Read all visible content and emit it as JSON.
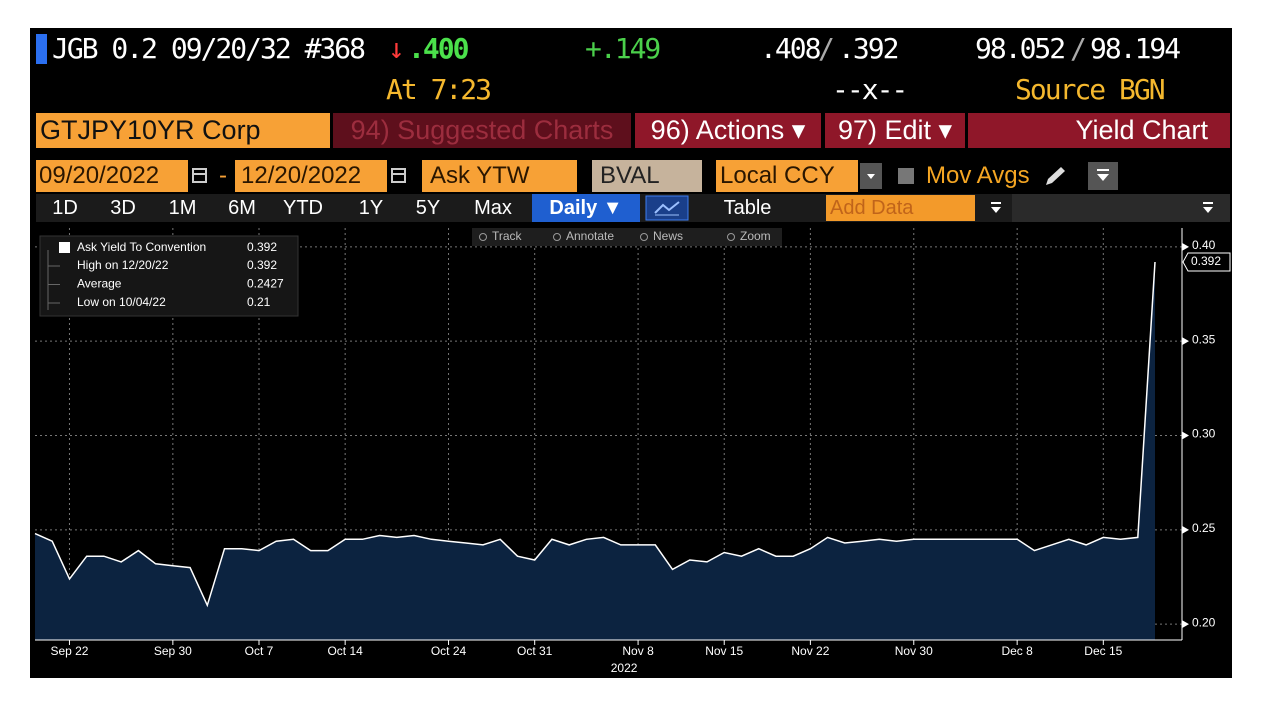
{
  "header": {
    "security": "JGB 0.2 09/20/32 #368",
    "arrow": "↓",
    "last": ".400",
    "change": "+.149",
    "bid": ".408",
    "ask": ".392",
    "separator": "/",
    "price_bid": "98.052",
    "price_ask": "98.194",
    "time": "At 7:23",
    "x_mark": "--x--",
    "source": "Source BGN"
  },
  "menu": {
    "ticker": "GTJPY10YR Corp",
    "suggested": "94) Suggested Charts",
    "actions": "96) Actions ▾",
    "edit": "97) Edit ▾",
    "title": "Yield Chart"
  },
  "controls": {
    "start": "09/20/2022",
    "dash": "-",
    "end": "12/20/2022",
    "field": "Ask YTW",
    "pricing_source": "BVAL",
    "currency": "Local CCY",
    "mov_avgs": "Mov Avgs"
  },
  "periods": [
    "1D",
    "3D",
    "1M",
    "6M",
    "YTD",
    "1Y",
    "5Y",
    "Max"
  ],
  "frequency": "Daily ▼",
  "table": "Table",
  "add_data": "Add Data",
  "chart_tools": [
    "Track",
    "Annotate",
    "News",
    "Zoom"
  ],
  "chart_data": {
    "type": "area",
    "x": [
      "2022-09-20",
      "2022-09-21",
      "2022-09-22",
      "2022-09-23",
      "2022-09-26",
      "2022-09-27",
      "2022-09-28",
      "2022-09-29",
      "2022-09-30",
      "2022-10-03",
      "2022-10-04",
      "2022-10-05",
      "2022-10-06",
      "2022-10-07",
      "2022-10-10",
      "2022-10-11",
      "2022-10-12",
      "2022-10-13",
      "2022-10-14",
      "2022-10-17",
      "2022-10-18",
      "2022-10-19",
      "2022-10-20",
      "2022-10-21",
      "2022-10-24",
      "2022-10-25",
      "2022-10-26",
      "2022-10-27",
      "2022-10-28",
      "2022-10-31",
      "2022-11-01",
      "2022-11-02",
      "2022-11-03",
      "2022-11-04",
      "2022-11-07",
      "2022-11-08",
      "2022-11-09",
      "2022-11-10",
      "2022-11-11",
      "2022-11-14",
      "2022-11-15",
      "2022-11-16",
      "2022-11-17",
      "2022-11-18",
      "2022-11-21",
      "2022-11-22",
      "2022-11-23",
      "2022-11-24",
      "2022-11-25",
      "2022-11-28",
      "2022-11-29",
      "2022-11-30",
      "2022-12-01",
      "2022-12-02",
      "2022-12-05",
      "2022-12-06",
      "2022-12-07",
      "2022-12-08",
      "2022-12-09",
      "2022-12-12",
      "2022-12-13",
      "2022-12-14",
      "2022-12-15",
      "2022-12-16",
      "2022-12-19",
      "2022-12-20"
    ],
    "series": [
      {
        "name": "Ask Yield To Convention",
        "color": "#ffffff",
        "fill": "#0c2340",
        "values": [
          0.248,
          0.244,
          0.224,
          0.236,
          0.236,
          0.233,
          0.239,
          0.232,
          0.231,
          0.23,
          0.21,
          0.24,
          0.24,
          0.239,
          0.244,
          0.245,
          0.239,
          0.239,
          0.245,
          0.245,
          0.247,
          0.246,
          0.247,
          0.245,
          0.244,
          0.243,
          0.242,
          0.245,
          0.236,
          0.234,
          0.245,
          0.242,
          0.245,
          0.246,
          0.242,
          0.242,
          0.242,
          0.229,
          0.234,
          0.233,
          0.238,
          0.236,
          0.24,
          0.236,
          0.236,
          0.24,
          0.246,
          0.243,
          0.244,
          0.245,
          0.244,
          0.245,
          0.245,
          0.245,
          0.245,
          0.245,
          0.245,
          0.245,
          0.239,
          0.242,
          0.245,
          0.242,
          0.246,
          0.245,
          0.246,
          0.392
        ]
      }
    ],
    "legend_stats": [
      {
        "label": "High on 12/20/22",
        "value": 0.392
      },
      {
        "label": "Average",
        "value": 0.2427
      },
      {
        "label": "Low on 10/04/22",
        "value": 0.21
      }
    ],
    "ylim": [
      0.1916,
      0.41
    ],
    "yticks": [
      {
        "value": 0.2,
        "label": "0.20"
      },
      0.25,
      {
        "value": 0.3,
        "label": "0.30"
      },
      0.35,
      {
        "value": 0.4,
        "label": "0.40"
      }
    ],
    "xticks": [
      {
        "value": "2022-09-22",
        "label": "Sep 22"
      },
      {
        "value": "2022-09-30",
        "label": "Sep 30"
      },
      {
        "value": "2022-10-07",
        "label": "Oct 7"
      },
      {
        "value": "2022-10-14",
        "label": "Oct 14"
      },
      {
        "value": "2022-10-24",
        "label": "Oct 24"
      },
      {
        "value": "2022-10-31",
        "label": "Oct 31"
      },
      {
        "value": "2022-11-08",
        "label": "Nov 8"
      },
      {
        "value": "2022-11-15",
        "label": "Nov 15"
      },
      {
        "value": "2022-11-22",
        "label": "Nov 22"
      },
      {
        "value": "2022-11-30",
        "label": "Nov 30"
      },
      {
        "value": "2022-12-08",
        "label": "Dec 8"
      },
      {
        "value": "2022-12-15",
        "label": "Dec 15"
      }
    ],
    "year_label": "2022",
    "grid": true
  }
}
